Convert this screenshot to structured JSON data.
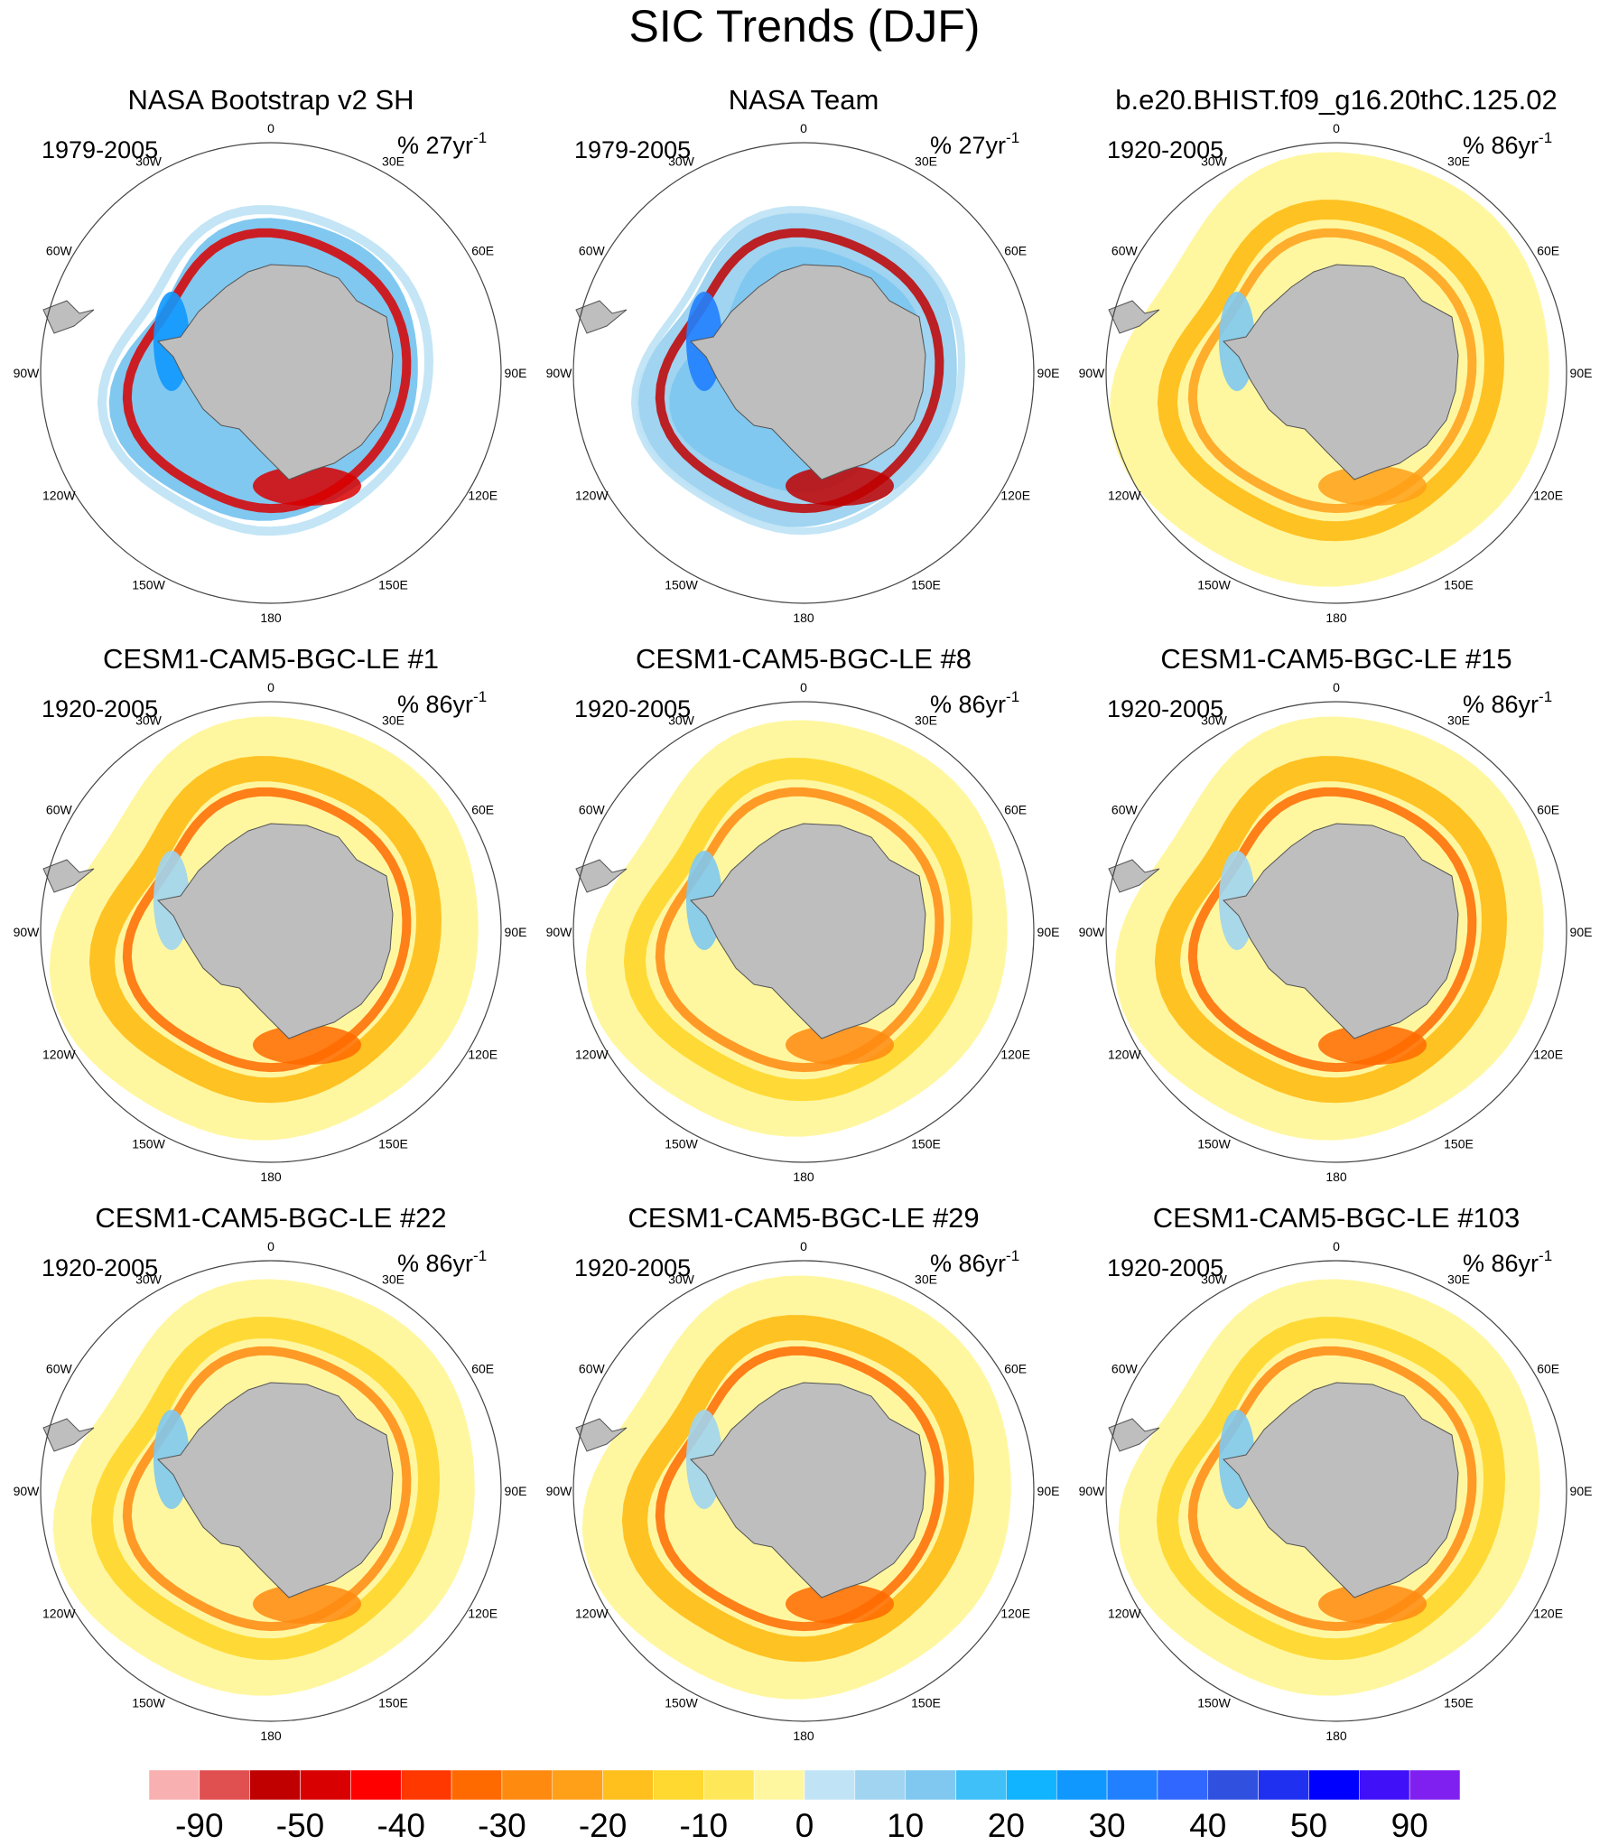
{
  "title": "SIC Trends (DJF)",
  "lon_labels": [
    "0",
    "30E",
    "60E",
    "90E",
    "120E",
    "150E",
    "180",
    "150W",
    "120W",
    "90W",
    "60W",
    "30W"
  ],
  "panels": [
    {
      "title": "NASA Bootstrap v2 SH",
      "period": "1979-2005",
      "units": "% 27yr",
      "units_exp": "-1",
      "style": "obs1"
    },
    {
      "title": "NASA Team",
      "period": "1979-2005",
      "units": "% 27yr",
      "units_exp": "-1",
      "style": "obs2"
    },
    {
      "title": "b.e20.BHIST.f09_g16.20thC.125.02",
      "period": "1920-2005",
      "units": "% 86yr",
      "units_exp": "-1",
      "style": "modelA"
    },
    {
      "title": "CESM1-CAM5-BGC-LE #1",
      "period": "1920-2005",
      "units": "% 86yr",
      "units_exp": "-1",
      "style": "modelB"
    },
    {
      "title": "CESM1-CAM5-BGC-LE #8",
      "period": "1920-2005",
      "units": "% 86yr",
      "units_exp": "-1",
      "style": "modelC"
    },
    {
      "title": "CESM1-CAM5-BGC-LE #15",
      "period": "1920-2005",
      "units": "% 86yr",
      "units_exp": "-1",
      "style": "modelB"
    },
    {
      "title": "CESM1-CAM5-BGC-LE #22",
      "period": "1920-2005",
      "units": "% 86yr",
      "units_exp": "-1",
      "style": "modelC"
    },
    {
      "title": "CESM1-CAM5-BGC-LE #29",
      "period": "1920-2005",
      "units": "% 86yr",
      "units_exp": "-1",
      "style": "modelB"
    },
    {
      "title": "CESM1-CAM5-BGC-LE #103",
      "period": "1920-2005",
      "units": "% 86yr",
      "units_exp": "-1",
      "style": "modelC"
    }
  ],
  "colorbar": {
    "colors": [
      "#f9b0b0",
      "#e05050",
      "#c00000",
      "#d80000",
      "#ff0000",
      "#ff3800",
      "#ff6a00",
      "#ff8a10",
      "#ffa018",
      "#ffbf1c",
      "#ffd830",
      "#ffe75a",
      "#fff7a0",
      "#c0e4f5",
      "#a0d4f0",
      "#80c8f0",
      "#40c0f8",
      "#10b4ff",
      "#1098ff",
      "#2080ff",
      "#3068ff",
      "#3050e0",
      "#2030f0",
      "#0000ff",
      "#4010f8",
      "#8020f0"
    ],
    "labels": [
      "-90",
      "-50",
      "-40",
      "-30",
      "-20",
      "-10",
      "0",
      "10",
      "20",
      "30",
      "40",
      "50",
      "90"
    ]
  }
}
